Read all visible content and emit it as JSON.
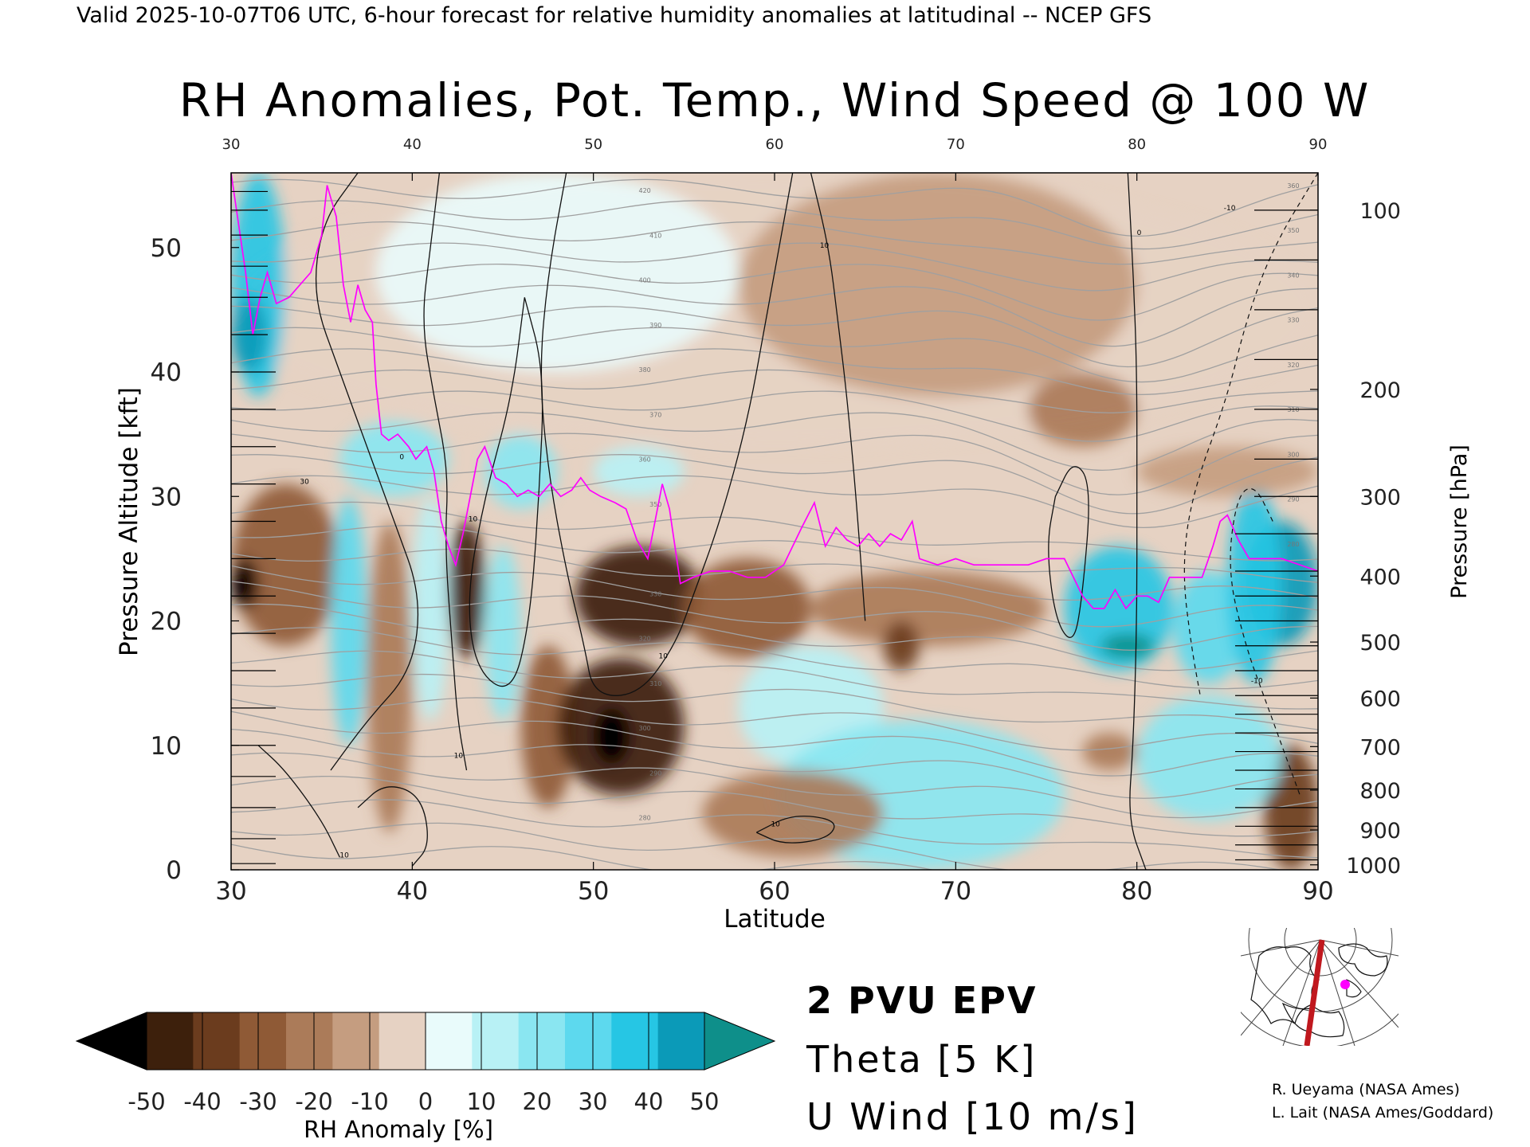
{
  "header": {
    "valid_line": "Valid 2025-10-07T06 UTC, 6-hour forecast for relative humidity anomalies at latitudinal -- NCEP GFS",
    "title": "RH Anomalies, Pot. Temp., Wind Speed @ 100 W"
  },
  "chart_data": {
    "type": "heatmap",
    "title": "RH Anomalies, Pot. Temp., Wind Speed @ 100 W",
    "xlabel": "Latitude",
    "ylabel": "Pressure Altitude [kft]",
    "y2label": "Pressure [hPa]",
    "xlim": [
      30,
      90
    ],
    "ylim": [
      0,
      56
    ],
    "x_ticks": [
      30,
      40,
      50,
      60,
      70,
      80,
      90
    ],
    "y_ticks": [
      0,
      10,
      20,
      30,
      40,
      50
    ],
    "pressure_ticks": [
      {
        "label": "100",
        "kft": 53.0
      },
      {
        "label": "200",
        "kft": 38.6
      },
      {
        "label": "300",
        "kft": 30.0
      },
      {
        "label": "400",
        "kft": 23.6
      },
      {
        "label": "500",
        "kft": 18.3
      },
      {
        "label": "600",
        "kft": 13.8
      },
      {
        "label": "700",
        "kft": 9.9
      },
      {
        "label": "800",
        "kft": 6.4
      },
      {
        "label": "900",
        "kft": 3.2
      },
      {
        "label": "1000",
        "kft": 0.4
      }
    ],
    "colorbar": {
      "label": "RH Anomaly [%]",
      "ticks": [
        -50,
        -40,
        -30,
        -20,
        -10,
        0,
        10,
        20,
        30,
        40,
        50
      ],
      "colors": [
        "#000000",
        "#3d200c",
        "#6b3c1e",
        "#8f5a36",
        "#ab7b59",
        "#c59d80",
        "#e6d2c3",
        "#e9fbfb",
        "#b8f1f5",
        "#8ae6f1",
        "#5dd9ee",
        "#26c6e4",
        "#0b9ab8",
        "#0e8f8a"
      ]
    },
    "epv_2pvu_kft": [
      [
        30.0,
        56.0
      ],
      [
        30.4,
        52.0
      ],
      [
        30.8,
        48.0
      ],
      [
        31.2,
        43.0
      ],
      [
        31.6,
        46.0
      ],
      [
        32.0,
        48.0
      ],
      [
        32.5,
        45.5
      ],
      [
        33.2,
        46.0
      ],
      [
        33.8,
        47.0
      ],
      [
        34.4,
        48.0
      ],
      [
        35.0,
        51.0
      ],
      [
        35.3,
        55.0
      ],
      [
        35.5,
        54.0
      ],
      [
        35.8,
        52.5
      ],
      [
        36.2,
        47.0
      ],
      [
        36.6,
        44.0
      ],
      [
        37.0,
        47.0
      ],
      [
        37.4,
        45.0
      ],
      [
        37.8,
        44.0
      ],
      [
        38.0,
        39.0
      ],
      [
        38.3,
        35.0
      ],
      [
        38.7,
        34.5
      ],
      [
        39.2,
        35.0
      ],
      [
        39.8,
        34.0
      ],
      [
        40.2,
        33.0
      ],
      [
        40.8,
        34.0
      ],
      [
        41.2,
        32.0
      ],
      [
        41.6,
        28.0
      ],
      [
        42.0,
        26.0
      ],
      [
        42.4,
        24.5
      ],
      [
        42.8,
        27.0
      ],
      [
        43.2,
        30.0
      ],
      [
        43.6,
        33.0
      ],
      [
        44.0,
        34.0
      ],
      [
        44.6,
        31.5
      ],
      [
        45.2,
        31.0
      ],
      [
        45.8,
        30.0
      ],
      [
        46.4,
        30.5
      ],
      [
        47.0,
        30.0
      ],
      [
        47.6,
        31.0
      ],
      [
        48.2,
        30.0
      ],
      [
        48.8,
        30.5
      ],
      [
        49.3,
        31.5
      ],
      [
        49.8,
        30.5
      ],
      [
        50.4,
        30.0
      ],
      [
        51.2,
        29.5
      ],
      [
        51.8,
        29.0
      ],
      [
        52.4,
        26.5
      ],
      [
        53.0,
        25.0
      ],
      [
        53.4,
        28.0
      ],
      [
        53.8,
        31.0
      ],
      [
        54.2,
        29.0
      ],
      [
        54.8,
        23.0
      ],
      [
        55.5,
        23.5
      ],
      [
        56.5,
        24.0
      ],
      [
        57.5,
        24.0
      ],
      [
        58.5,
        23.5
      ],
      [
        59.5,
        23.5
      ],
      [
        60.5,
        24.5
      ],
      [
        61.5,
        27.5
      ],
      [
        62.2,
        29.5
      ],
      [
        62.8,
        26.0
      ],
      [
        63.4,
        27.5
      ],
      [
        64.0,
        26.5
      ],
      [
        64.6,
        26.0
      ],
      [
        65.2,
        27.0
      ],
      [
        65.8,
        26.0
      ],
      [
        66.4,
        27.0
      ],
      [
        67.0,
        26.5
      ],
      [
        67.6,
        28.0
      ],
      [
        68.0,
        25.0
      ],
      [
        69.0,
        24.5
      ],
      [
        70.0,
        25.0
      ],
      [
        71.0,
        24.5
      ],
      [
        72.0,
        24.5
      ],
      [
        73.0,
        24.5
      ],
      [
        74.0,
        24.5
      ],
      [
        75.0,
        25.0
      ],
      [
        76.0,
        25.0
      ],
      [
        77.0,
        22.0
      ],
      [
        77.6,
        21.0
      ],
      [
        78.2,
        21.0
      ],
      [
        78.8,
        22.5
      ],
      [
        79.4,
        21.0
      ],
      [
        80.0,
        22.0
      ],
      [
        80.6,
        22.0
      ],
      [
        81.2,
        21.5
      ],
      [
        81.8,
        23.5
      ],
      [
        82.4,
        23.5
      ],
      [
        83.0,
        23.5
      ],
      [
        83.6,
        23.5
      ],
      [
        84.2,
        26.0
      ],
      [
        84.6,
        28.0
      ],
      [
        85.0,
        28.5
      ],
      [
        85.6,
        26.5
      ],
      [
        86.2,
        25.0
      ],
      [
        87.0,
        25.0
      ],
      [
        88.0,
        25.0
      ],
      [
        89.0,
        24.5
      ],
      [
        90.0,
        24.0
      ]
    ],
    "theta_labels_K": [
      "280",
      "290",
      "300",
      "310",
      "320",
      "330",
      "340",
      "350",
      "360",
      "370",
      "380",
      "390",
      "400",
      "410",
      "420"
    ],
    "wind_labels": [
      "0",
      "10",
      "10",
      "10",
      "10",
      "10",
      "30",
      "0",
      "-10",
      "-10",
      "10"
    ],
    "legend": {
      "epv": "2 PVU EPV",
      "theta": "Theta [5 K]",
      "wind": "U Wind [10 m/s]",
      "epv_color": "#ff00ff",
      "theta_color": "#a8a8a8",
      "wind_color": "#000000"
    }
  },
  "credits": {
    "line1": "R. Ueyama (NASA Ames)",
    "line2": "L. Lait (NASA Ames/Goddard)"
  },
  "inset_map": {
    "icon": "globe-map-icon",
    "track_color": "#c0181e",
    "marker_color": "#ff00ff"
  }
}
